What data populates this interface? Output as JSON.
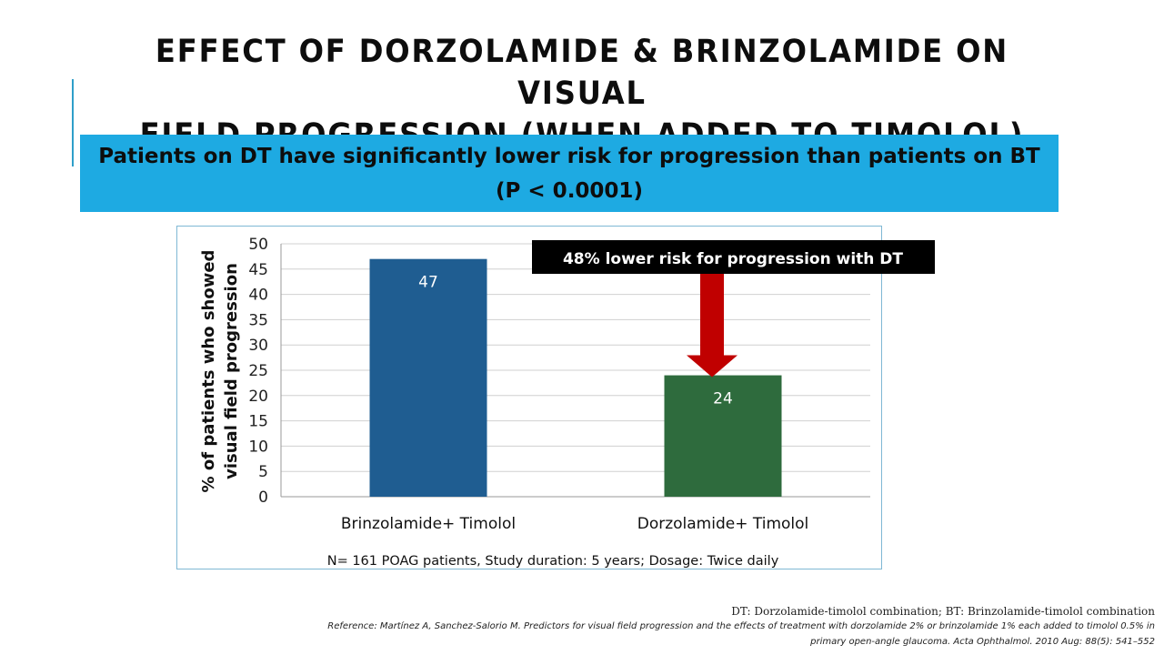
{
  "slide": {
    "title_lines": [
      "EFFECT OF DORZOLAMIDE & BRINZOLAMIDE ON VISUAL",
      "FIELD PROGRESSION (WHEN ADDED TO TIMOLOL)"
    ],
    "banner_lines": [
      "Patients on DT have significantly lower risk for progression than patients on BT",
      "(P < 0.0001)"
    ],
    "footnote_definitions": "DT: Dorzolamide-timolol combination; BT: Brinzolamide-timolol combination",
    "reference_lines": [
      "Reference: Martínez A, Sanchez-Salorio M. Predictors for visual field progression and the effects of treatment with dorzolamide 2% or brinzolamide 1% each added to timolol 0.5% in",
      "primary open-angle glaucoma. Acta Ophthalmol. 2010 Aug: 88(5): 541–552"
    ],
    "colors": {
      "banner": "#1eaae2",
      "accent_line": "#2f9fc9",
      "arrow": "#c00000",
      "callout_bg": "#000000"
    }
  },
  "chart_data": {
    "type": "bar",
    "categories": [
      "Brinzolamide+ Timolol",
      "Dorzolamide+ Timolol"
    ],
    "values": [
      47,
      24
    ],
    "bar_colors": [
      "#1f5d91",
      "#2e6b3d"
    ],
    "data_labels": [
      "47",
      "24"
    ],
    "ylabel_lines": [
      "% of patients who showed",
      "visual field progression"
    ],
    "ylim": [
      0,
      50
    ],
    "yticks": [
      "0",
      "5",
      "10",
      "15",
      "20",
      "25",
      "30",
      "35",
      "40",
      "45",
      "50"
    ],
    "grid": true,
    "note": "N= 161 POAG patients, Study duration: 5 years; Dosage: Twice daily",
    "annotation": "48% lower risk for progression with DT"
  }
}
